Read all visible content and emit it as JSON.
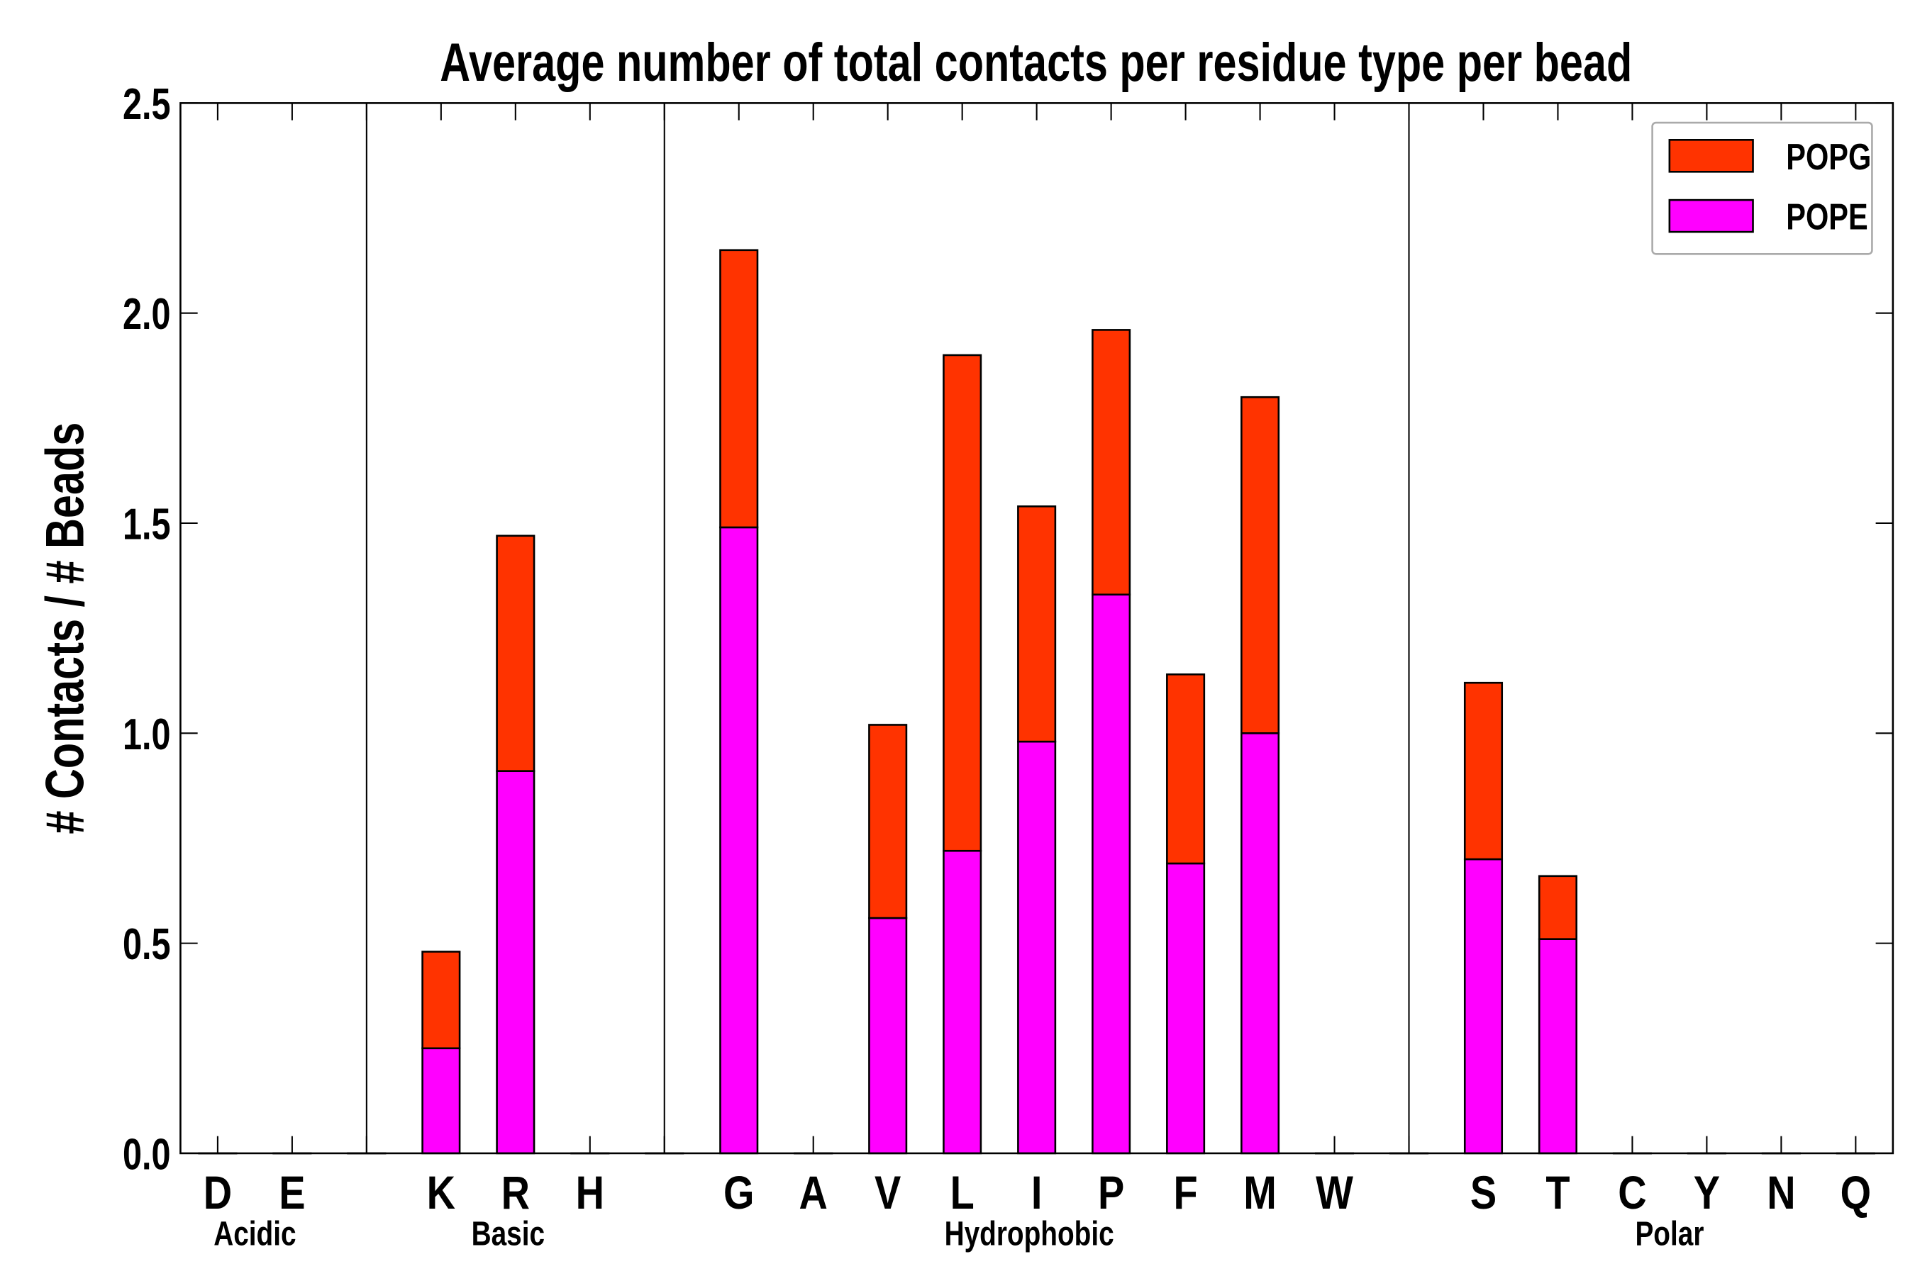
{
  "chart_data": {
    "type": "bar",
    "stacked": true,
    "title": "Average number of total contacts per residue type per bead",
    "xlabel": "",
    "ylabel": "# Contacts / # Beads",
    "ylim": [
      0,
      2.5
    ],
    "yticks": [
      "0.0",
      "0.5",
      "1.0",
      "1.5",
      "2.0",
      "2.5"
    ],
    "categories": [
      "D",
      "E",
      "",
      "K",
      "R",
      "H",
      "",
      "G",
      "A",
      "V",
      "L",
      "I",
      "P",
      "F",
      "M",
      "W",
      "",
      "S",
      "T",
      "C",
      "Y",
      "N",
      "Q"
    ],
    "groups": [
      {
        "label": "Acidic",
        "center": 0.5
      },
      {
        "label": "Basic",
        "center": 3.9
      },
      {
        "label": "Hydrophobic",
        "center": 10.9
      },
      {
        "label": "Polar",
        "center": 19.5
      }
    ],
    "separators": [
      2,
      6,
      16
    ],
    "series": [
      {
        "name": "POPE",
        "color": "#ff00ff",
        "values": [
          0,
          0,
          0,
          0.25,
          0.91,
          0,
          0,
          1.49,
          0,
          0.56,
          0.72,
          0.98,
          1.33,
          0.69,
          1.0,
          0,
          0,
          0.7,
          0.51,
          0,
          0,
          0,
          0
        ]
      },
      {
        "name": "POPG",
        "color": "#ff3300",
        "values": [
          0,
          0,
          0,
          0.23,
          0.56,
          0,
          0,
          0.66,
          0,
          0.46,
          1.18,
          0.56,
          0.63,
          0.45,
          0.8,
          0,
          0,
          0.42,
          0.15,
          0,
          0,
          0,
          0
        ]
      }
    ],
    "legend": {
      "placement": "top-right",
      "entries": [
        "POPG",
        "POPE"
      ]
    }
  }
}
